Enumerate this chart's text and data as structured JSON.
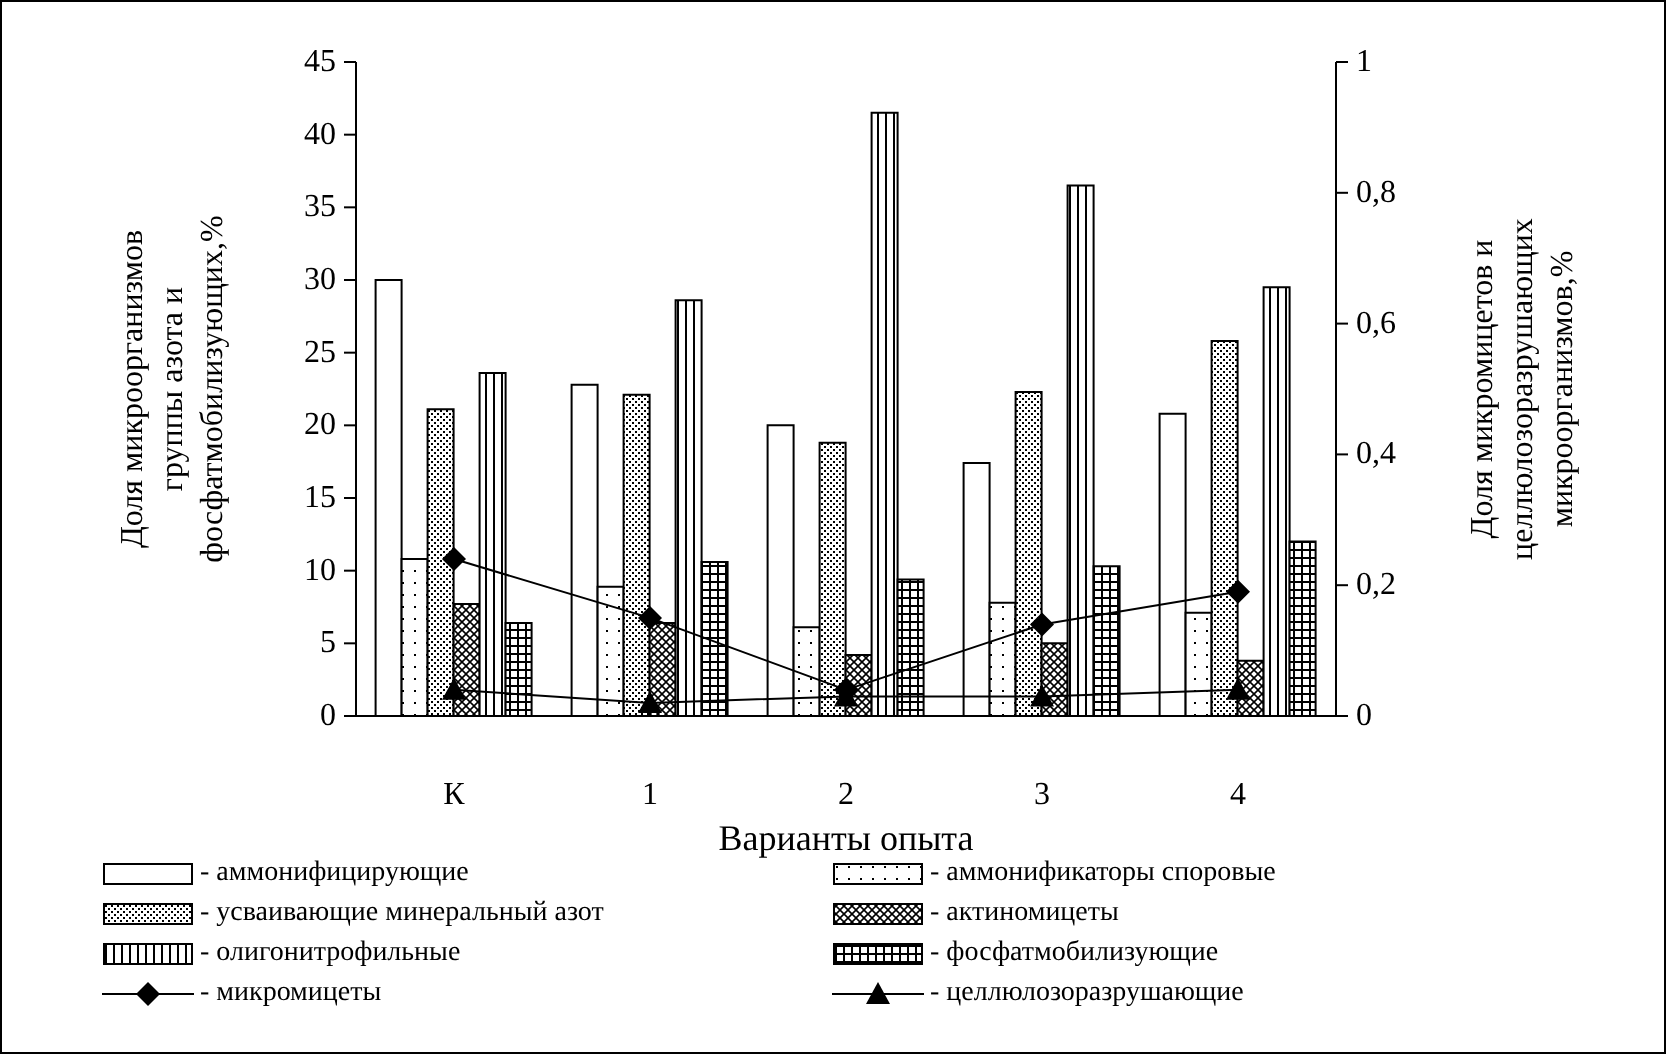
{
  "chart_data": {
    "type": "bar",
    "categories": [
      "К",
      "1",
      "2",
      "3",
      "4"
    ],
    "xlabel": "Варианты опыта",
    "ylabel": "Доля  микроорганизмов группы азота и фосфатмобилизующих,%",
    "y2label": "Доля  микромицетов и целлюлозоразрушающих микроорганизмов,%",
    "ylim": [
      0,
      45
    ],
    "yticks": [
      0,
      5,
      10,
      15,
      20,
      25,
      30,
      35,
      40,
      45
    ],
    "y2lim": [
      0,
      1
    ],
    "y2ticks": [
      0,
      {
        "value": 0.2,
        "label": "0,2"
      },
      {
        "value": 0.4,
        "label": "0,4"
      },
      {
        "value": 0.6,
        "label": "0,6"
      },
      {
        "value": 0.8,
        "label": "0,8"
      },
      1
    ],
    "legend": "bottom",
    "series": [
      {
        "name": "- аммонифицирующие",
        "color": "#ffffff",
        "values": [
          30.0,
          22.8,
          20.0,
          17.4,
          20.8
        ]
      },
      {
        "name": "- аммонификаторы споровые",
        "color": "#000000",
        "values": [
          10.8,
          8.9,
          6.1,
          7.8,
          7.1
        ]
      },
      {
        "name": "- усваивающие минеральный азот",
        "color": "#000000",
        "values": [
          21.1,
          22.1,
          18.8,
          22.3,
          25.8
        ]
      },
      {
        "name": "- актиномицеты",
        "color": "#000000",
        "values": [
          7.7,
          6.4,
          4.2,
          5.0,
          3.8
        ]
      },
      {
        "name": "- олигонитрофильные",
        "color": "#000000",
        "values": [
          23.6,
          28.6,
          41.5,
          36.5,
          29.5
        ]
      },
      {
        "name": "- фосфатмобилизующие",
        "color": "#000000",
        "values": [
          6.4,
          10.6,
          9.4,
          10.3,
          12.0
        ]
      },
      {
        "name": "- микромицеты",
        "type": "line",
        "axis": "y2",
        "marker": "diamond",
        "color": "#000000",
        "values": [
          0.24,
          0.15,
          0.04,
          0.14,
          0.19
        ]
      },
      {
        "name": "- целлюлозоразрушающие",
        "type": "line",
        "axis": "y2",
        "marker": "triangle",
        "color": "#000000",
        "values": [
          0.04,
          0.02,
          0.03,
          0.03,
          0.04
        ]
      }
    ]
  }
}
